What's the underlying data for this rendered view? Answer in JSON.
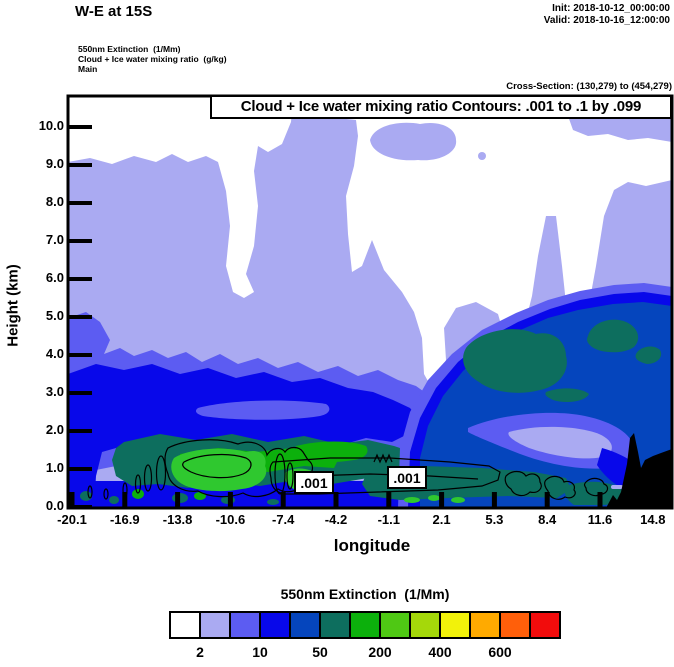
{
  "header": {
    "title": "W-E at 15S",
    "init": "Init: 2018-10-12_00:00:00",
    "valid": "Valid: 2018-10-16_12:00:00",
    "layer_lines": [
      "550nm Extinction  (1/Mm)",
      "Cloud + Ice water mixing ratio  (g/kg)",
      "Main"
    ],
    "cross_section": "Cross-Section: (130,279) to (454,279)"
  },
  "chart_data": {
    "type": "heatmap",
    "subtype": "filled-contour vertical cross-section (W-E at 15S)",
    "title": "Cloud + Ice water mixing ratio Contours: .001 to .1 by .099",
    "xlabel": "longitude",
    "ylabel": "Height (km)",
    "x_ticks": [
      "-20.1",
      "-16.9",
      "-13.8",
      "-10.6",
      "-7.4",
      "-4.2",
      "-1.1",
      "2.1",
      "5.3",
      "8.4",
      "11.6",
      "14.8"
    ],
    "y_ticks": [
      "0.0",
      "1.0",
      "2.0",
      "3.0",
      "4.0",
      "5.0",
      "6.0",
      "7.0",
      "8.0",
      "9.0",
      "10.0"
    ],
    "xlim": [
      -20.1,
      16.1
    ],
    "ylim": [
      0,
      10.8
    ],
    "grid": false,
    "shaded_field": "550nm Extinction (1/Mm)",
    "contour_field": "Cloud + Ice water mixing ratio (g/kg)",
    "contour_levels": [
      0.001,
      0.1
    ],
    "contour_labels": [
      ".001",
      ".001"
    ],
    "palette": {
      "white": "#ffffff",
      "lavender": "#aaaaf2",
      "medium_blue": "#5c5cf2",
      "bright_blue": "#0808ea",
      "royal_blue": "#0545bd",
      "teal": "#0d6e5e",
      "green": "#0cb00c",
      "light_green": "#2fc82f",
      "yellow_green": "#a5d80a",
      "yellow": "#f2f20a",
      "orange": "#ffaa00",
      "orange_red": "#ff5f0a",
      "red": "#f20c0c",
      "black": "#000000"
    },
    "fill_legend": {
      "title": "550nm Extinction  (1/Mm)",
      "position": "bottom",
      "colors": [
        "#ffffff",
        "#aaaaf2",
        "#5c5cf2",
        "#0808ea",
        "#0545bd",
        "#0d6e5e",
        "#0cb00c",
        "#4fc814",
        "#a5d80a",
        "#f2f20a",
        "#ffaa00",
        "#ff5f0a",
        "#f20c0c"
      ],
      "boundary_labels": [
        {
          "text": "2",
          "boundary": 1
        },
        {
          "text": "10",
          "boundary": 3
        },
        {
          "text": "50",
          "boundary": 5
        },
        {
          "text": "200",
          "boundary": 7
        },
        {
          "text": "400",
          "boundary": 9
        },
        {
          "text": "600",
          "boundary": 11
        }
      ]
    },
    "features": [
      "clear air (white, extinction < 2 /Mm) above ~9 km and in mid-level gaps",
      "widespread 2-10 /Mm haze (light blue-violet) between ~4 and 9 km",
      "10-50 /Mm layer (blue shades) between ~1 and 4 km across the section",
      "50-200 /Mm plume (dark blue / teal with green cores) below ~2 km, strongest near longitudes -14 to -10 and east of 2",
      "terrain (black) near the eastern edge around longitude 12 to 15",
      ".001 g/kg cloud+ice water contour encircles the ~0.5-1.5 km layer with two .001 labels"
    ]
  }
}
